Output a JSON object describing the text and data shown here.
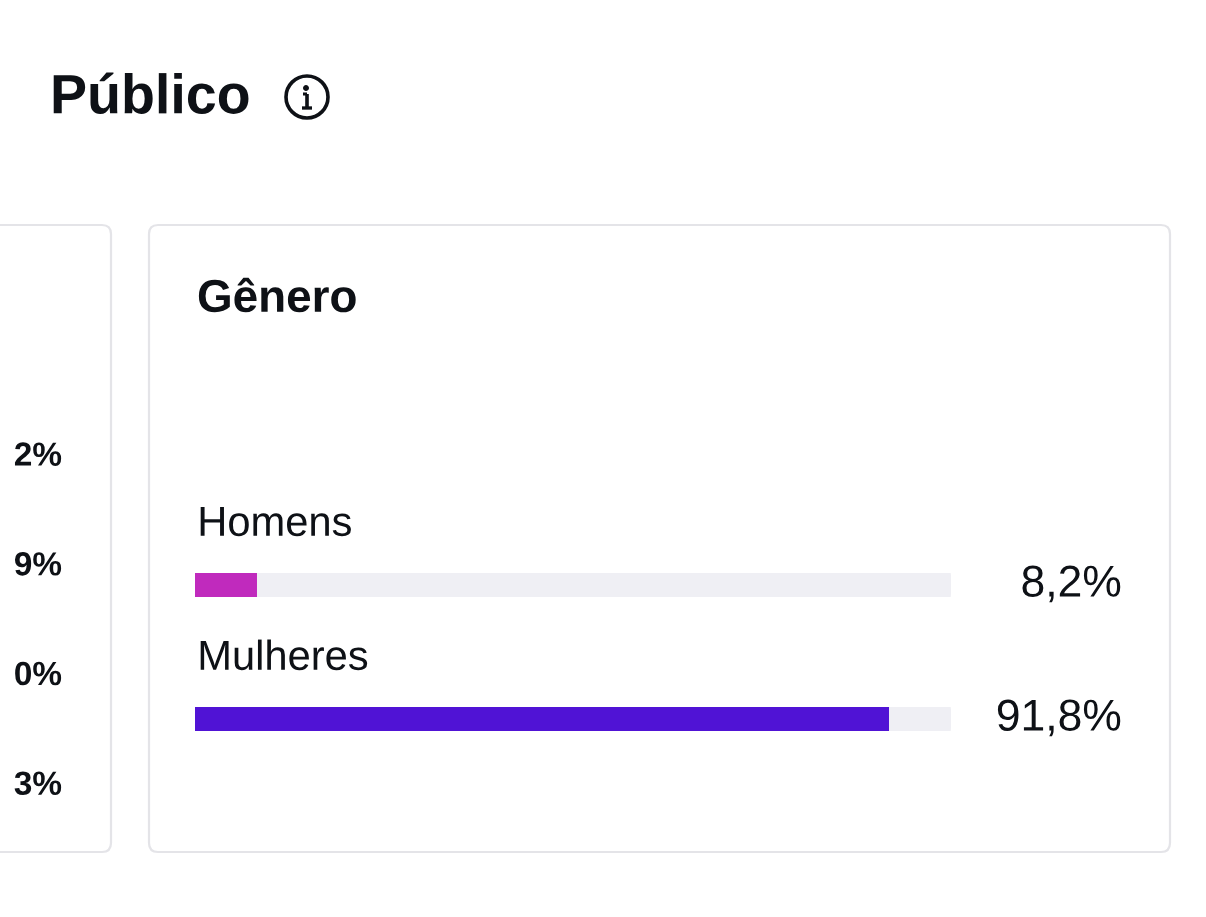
{
  "chart_data": [
    {
      "type": "other",
      "title": "Público",
      "annotations": [
        "2%",
        "9%",
        "0%",
        "3%"
      ]
    },
    {
      "type": "bar",
      "orientation": "horizontal",
      "title": "Gênero",
      "categories": [
        "Homens",
        "Mulheres"
      ],
      "values": [
        8.2,
        91.8
      ],
      "colors": [
        "#c02abd",
        "#5013d5"
      ],
      "xlim": [
        0,
        100
      ],
      "value_labels": [
        "8,2%",
        "91,8%"
      ],
      "tick_labels": "y"
    }
  ]
}
